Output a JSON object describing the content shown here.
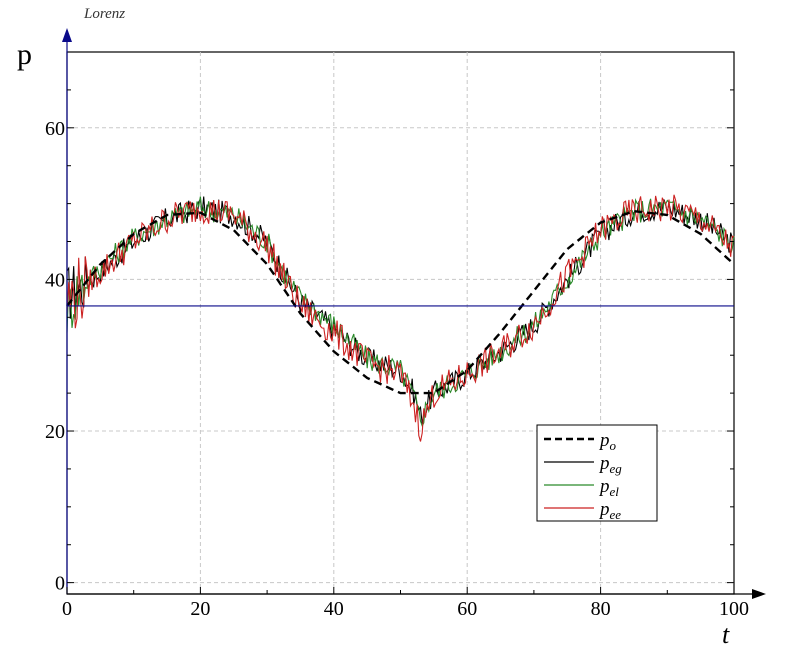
{
  "chart_data": {
    "type": "line",
    "title": "Lorenz",
    "xlabel": "t",
    "ylabel": "p",
    "xlim": [
      0,
      100
    ],
    "ylim": [
      -1.5,
      70
    ],
    "x_ticks": [
      0,
      20,
      40,
      60,
      80,
      100
    ],
    "y_ticks": [
      0,
      20,
      40,
      60
    ],
    "x_tick_labels": [
      "0",
      "20",
      "40",
      "60",
      "80",
      "100"
    ],
    "y_tick_labels": [
      "0",
      "20",
      "40",
      "60"
    ],
    "grid": true,
    "legend_position": "bottom-right",
    "legend": [
      {
        "base": "p",
        "sub": "o",
        "color": "#000000",
        "style": "dashed"
      },
      {
        "base": "p",
        "sub": "eg",
        "color": "#000000",
        "style": "solid"
      },
      {
        "base": "p",
        "sub": "el",
        "color": "#2a8a2a",
        "style": "solid"
      },
      {
        "base": "p",
        "sub": "ee",
        "color": "#cc2222",
        "style": "solid"
      }
    ],
    "reference_line": {
      "y": 36.5,
      "color": "#0a0a8a"
    },
    "series": [
      {
        "key": "po",
        "color": "#000000",
        "style": "dashed",
        "x": [
          0,
          5,
          10,
          15,
          20,
          25,
          30,
          35,
          40,
          45,
          50,
          55,
          60,
          65,
          70,
          75,
          80,
          85,
          90,
          95,
          100
        ],
        "y": [
          36.5,
          42,
          46,
          48.5,
          48.8,
          46.5,
          42,
          35.5,
          30.5,
          27,
          25,
          25,
          28,
          33,
          38.5,
          44,
          47.5,
          49,
          48.5,
          46,
          42
        ]
      },
      {
        "key": "peg",
        "color": "#000000",
        "style": "solid",
        "noise": 1.6,
        "x": [
          0,
          2,
          5,
          10,
          15,
          20,
          25,
          30,
          33,
          35,
          40,
          45,
          50,
          52,
          53,
          55,
          60,
          65,
          70,
          75,
          80,
          85,
          90,
          95,
          100
        ],
        "y": [
          38,
          39,
          41,
          45,
          48,
          49.5,
          48.5,
          45,
          40,
          37,
          33.5,
          29.5,
          28,
          25,
          22,
          25,
          27.5,
          30.5,
          34,
          40,
          46,
          49,
          49.5,
          48,
          44.5
        ]
      },
      {
        "key": "pel",
        "color": "#2a8a2a",
        "style": "solid",
        "noise": 1.6,
        "x": [
          0,
          2,
          5,
          10,
          15,
          20,
          25,
          30,
          33,
          35,
          40,
          45,
          50,
          52,
          53,
          55,
          60,
          65,
          70,
          75,
          80,
          85,
          90,
          95,
          100
        ],
        "y": [
          36,
          39,
          41.5,
          45.5,
          48,
          49.5,
          48.5,
          45,
          40,
          37.5,
          34,
          29.5,
          28,
          24.5,
          21.5,
          25,
          27.5,
          30.5,
          34,
          40,
          46,
          49,
          49.5,
          48,
          44.5
        ]
      },
      {
        "key": "pee",
        "color": "#cc2222",
        "style": "solid",
        "noise": 2.0,
        "x": [
          0,
          2,
          5,
          10,
          15,
          20,
          25,
          30,
          33,
          35,
          40,
          45,
          50,
          52,
          53,
          55,
          60,
          65,
          70,
          75,
          80,
          85,
          90,
          95,
          100
        ],
        "y": [
          37,
          38.5,
          41,
          45,
          48,
          49.5,
          48.5,
          44.5,
          39.5,
          36.5,
          33,
          29,
          27.5,
          23.5,
          20.5,
          25,
          27.5,
          30.5,
          34,
          40.5,
          46.5,
          49,
          49.5,
          48,
          44
        ]
      }
    ]
  }
}
